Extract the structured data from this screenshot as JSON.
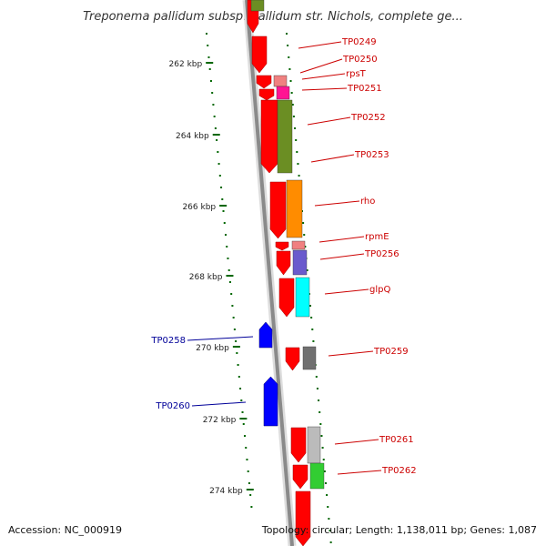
{
  "title": "Treponema pallidum subsp. pallidum str. Nichols, complete ge...",
  "footer": {
    "accession": "Accession: NC_000919",
    "topology": "Topology: circular; Length: 1,138,011 bp; Genes: 1,087"
  },
  "scale": {
    "tick_labels": [
      "262 kbp",
      "264 kbp",
      "266 kbp",
      "268 kbp",
      "270 kbp",
      "272 kbp",
      "274 kbp"
    ]
  },
  "genes_right": [
    "TP0249",
    "TP0250",
    "rpsT",
    "TP0251",
    "TP0252",
    "TP0253",
    "rho",
    "rpmE",
    "TP0256",
    "glpQ",
    "TP0259",
    "TP0261",
    "TP0262"
  ],
  "genes_left": [
    "TP0258",
    "TP0260"
  ],
  "colors": {
    "backbone": "#8a8a8a",
    "forward_cds": "#ff0000",
    "reverse_cds": "#0000ff",
    "label_right": "#cc0000",
    "label_left": "#000099",
    "tick": "#006600",
    "cog_olive": "#6b8e23",
    "cog_orange": "#ff8c00",
    "cog_magenta": "#ff1493",
    "cog_pink": "#f08080",
    "cog_slate": "#6a5acd",
    "cog_cyan": "#00ffff",
    "cog_gray": "#707070",
    "cog_lightgray": "#bbbbbb",
    "cog_green": "#32cd32"
  }
}
